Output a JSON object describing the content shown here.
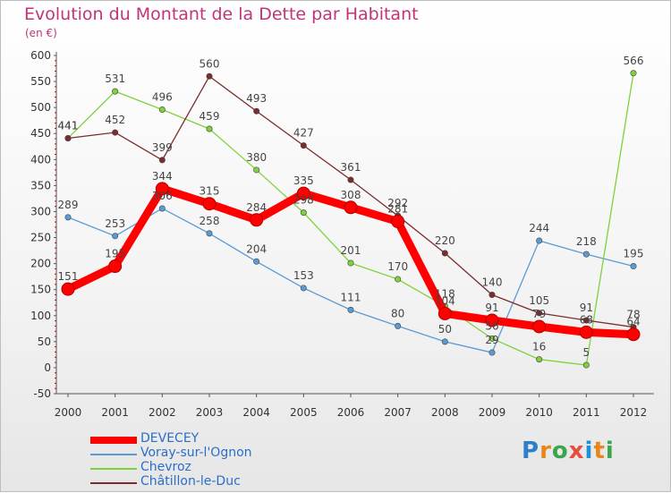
{
  "title": "Evolution du Montant de la Dette par Habitant",
  "unit": "(en €)",
  "logo": {
    "text": "Proxiti",
    "letter_colors": [
      "#2c7fc8",
      "#e8861a",
      "#3aa64c",
      "#e84c3d",
      "#1e90d6",
      "#e8861a",
      "#3aa64c"
    ]
  },
  "chart_data": {
    "type": "line",
    "x": [
      "2000",
      "2001",
      "2002",
      "2003",
      "2004",
      "2005",
      "2006",
      "2007",
      "2008",
      "2009",
      "2010",
      "2011",
      "2012"
    ],
    "ylim": [
      -50,
      600
    ],
    "yticks": [
      "-50",
      "0",
      "50",
      "100",
      "150",
      "200",
      "250",
      "300",
      "350",
      "400",
      "450",
      "500",
      "550",
      "600"
    ],
    "grid": false,
    "legend_position": "bottom-left",
    "series": [
      {
        "name": "DEVECEY",
        "color": "#ff0000",
        "values": [
          151,
          195,
          344,
          315,
          284,
          335,
          308,
          281,
          104,
          91,
          79,
          68,
          64
        ],
        "labels": [
          "151",
          "195",
          "344",
          "315",
          "284",
          "335",
          "308",
          "281",
          "104",
          "91",
          "79",
          "68",
          "64"
        ]
      },
      {
        "name": "Voray-sur-l'Ognon",
        "color": "#5b9bd5",
        "values": [
          289,
          253,
          306,
          258,
          204,
          153,
          111,
          80,
          50,
          29,
          244,
          218,
          195
        ],
        "labels": [
          "289",
          "253",
          "306",
          "258",
          "204",
          "153",
          "111",
          "80",
          "50",
          "29",
          "244",
          "218",
          "195"
        ]
      },
      {
        "name": "Chevroz",
        "color": "#7fd13b",
        "values": [
          441,
          531,
          496,
          459,
          380,
          298,
          201,
          170,
          118,
          56,
          16,
          5,
          566
        ],
        "labels": [
          "441",
          "531",
          "496",
          "459",
          "380",
          "298",
          "201",
          "170",
          "118",
          "56",
          "16",
          "5",
          "566"
        ]
      },
      {
        "name": "Châtillon-le-Duc",
        "color": "#7b2c2c",
        "values": [
          441,
          452,
          399,
          560,
          493,
          427,
          361,
          292,
          220,
          140,
          105,
          91,
          78
        ],
        "labels": [
          "441",
          "452",
          "399",
          "560",
          "493",
          "427",
          "361",
          "292",
          "220",
          "140",
          "105",
          "91",
          "78"
        ]
      }
    ]
  }
}
